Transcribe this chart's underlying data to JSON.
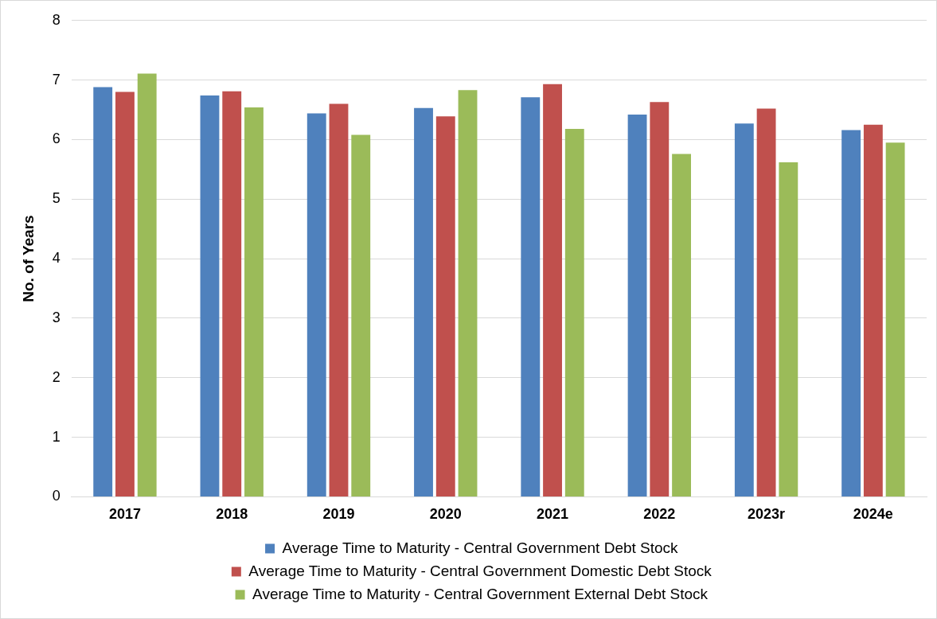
{
  "chart_data": {
    "type": "bar",
    "ylabel": "No. of Years",
    "categories": [
      "2017",
      "2018",
      "2019",
      "2020",
      "2021",
      "2022",
      "2023r",
      "2024e"
    ],
    "series": [
      {
        "name": "Average Time to Maturity - Central Government Debt Stock",
        "color": "#4f81bd",
        "values": [
          6.88,
          6.74,
          6.44,
          6.53,
          6.71,
          6.42,
          6.27,
          6.16
        ]
      },
      {
        "name": "Average Time to Maturity - Central Government Domestic Debt Stock",
        "color": "#c0504d",
        "values": [
          6.8,
          6.81,
          6.6,
          6.39,
          6.93,
          6.63,
          6.52,
          6.25
        ]
      },
      {
        "name": "Average Time to Maturity - Central Government External Debt Stock",
        "color": "#9bbb59",
        "values": [
          7.11,
          6.54,
          6.08,
          6.83,
          6.18,
          5.76,
          5.62,
          5.95
        ]
      }
    ],
    "ylim": [
      0,
      8
    ],
    "yticks": [
      0,
      1,
      2,
      3,
      4,
      5,
      6,
      7,
      8
    ],
    "grid": "y",
    "legend": "bottom"
  }
}
